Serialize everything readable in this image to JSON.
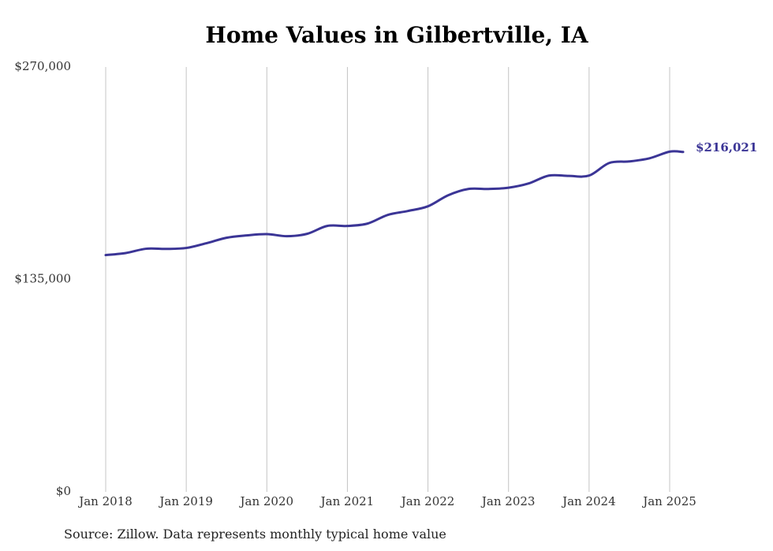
{
  "chart_data": {
    "type": "line",
    "title": "Home Values in Gilbertville, IA",
    "xlabel": "",
    "ylabel": "",
    "source_note": "Source: Zillow. Data represents monthly typical home value",
    "ylim": [
      0,
      270000
    ],
    "y_ticks": [
      {
        "value": 0,
        "label": "$0"
      },
      {
        "value": 135000,
        "label": "$135,000"
      },
      {
        "value": 270000,
        "label": "$270,000"
      }
    ],
    "x_ticks": [
      {
        "date": "2018-01",
        "label": "Jan 2018"
      },
      {
        "date": "2019-01",
        "label": "Jan 2019"
      },
      {
        "date": "2020-01",
        "label": "Jan 2020"
      },
      {
        "date": "2021-01",
        "label": "Jan 2021"
      },
      {
        "date": "2022-01",
        "label": "Jan 2022"
      },
      {
        "date": "2023-01",
        "label": "Jan 2023"
      },
      {
        "date": "2024-01",
        "label": "Jan 2024"
      },
      {
        "date": "2025-01",
        "label": "Jan 2025"
      }
    ],
    "grid": {
      "vertical": true,
      "horizontal": false
    },
    "series": [
      {
        "color": "#3b3596",
        "end_label": "$216,021",
        "points": [
          {
            "x": "2018-01",
            "y": 150500
          },
          {
            "x": "2018-04",
            "y": 151800
          },
          {
            "x": "2018-07",
            "y": 154500
          },
          {
            "x": "2018-10",
            "y": 154400
          },
          {
            "x": "2019-01",
            "y": 155000
          },
          {
            "x": "2019-04",
            "y": 158000
          },
          {
            "x": "2019-07",
            "y": 161500
          },
          {
            "x": "2019-10",
            "y": 163000
          },
          {
            "x": "2020-01",
            "y": 163800
          },
          {
            "x": "2020-04",
            "y": 162500
          },
          {
            "x": "2020-07",
            "y": 164000
          },
          {
            "x": "2020-10",
            "y": 169000
          },
          {
            "x": "2021-01",
            "y": 169000
          },
          {
            "x": "2021-04",
            "y": 170500
          },
          {
            "x": "2021-07",
            "y": 176000
          },
          {
            "x": "2021-10",
            "y": 178500
          },
          {
            "x": "2022-01",
            "y": 181500
          },
          {
            "x": "2022-04",
            "y": 188500
          },
          {
            "x": "2022-07",
            "y": 192500
          },
          {
            "x": "2022-10",
            "y": 192500
          },
          {
            "x": "2023-01",
            "y": 193300
          },
          {
            "x": "2023-04",
            "y": 196000
          },
          {
            "x": "2023-07",
            "y": 201000
          },
          {
            "x": "2023-10",
            "y": 200800
          },
          {
            "x": "2024-01",
            "y": 201000
          },
          {
            "x": "2024-04",
            "y": 209000
          },
          {
            "x": "2024-07",
            "y": 210000
          },
          {
            "x": "2024-10",
            "y": 212000
          },
          {
            "x": "2025-01",
            "y": 216200
          },
          {
            "x": "2025-03",
            "y": 216021
          }
        ]
      }
    ]
  }
}
